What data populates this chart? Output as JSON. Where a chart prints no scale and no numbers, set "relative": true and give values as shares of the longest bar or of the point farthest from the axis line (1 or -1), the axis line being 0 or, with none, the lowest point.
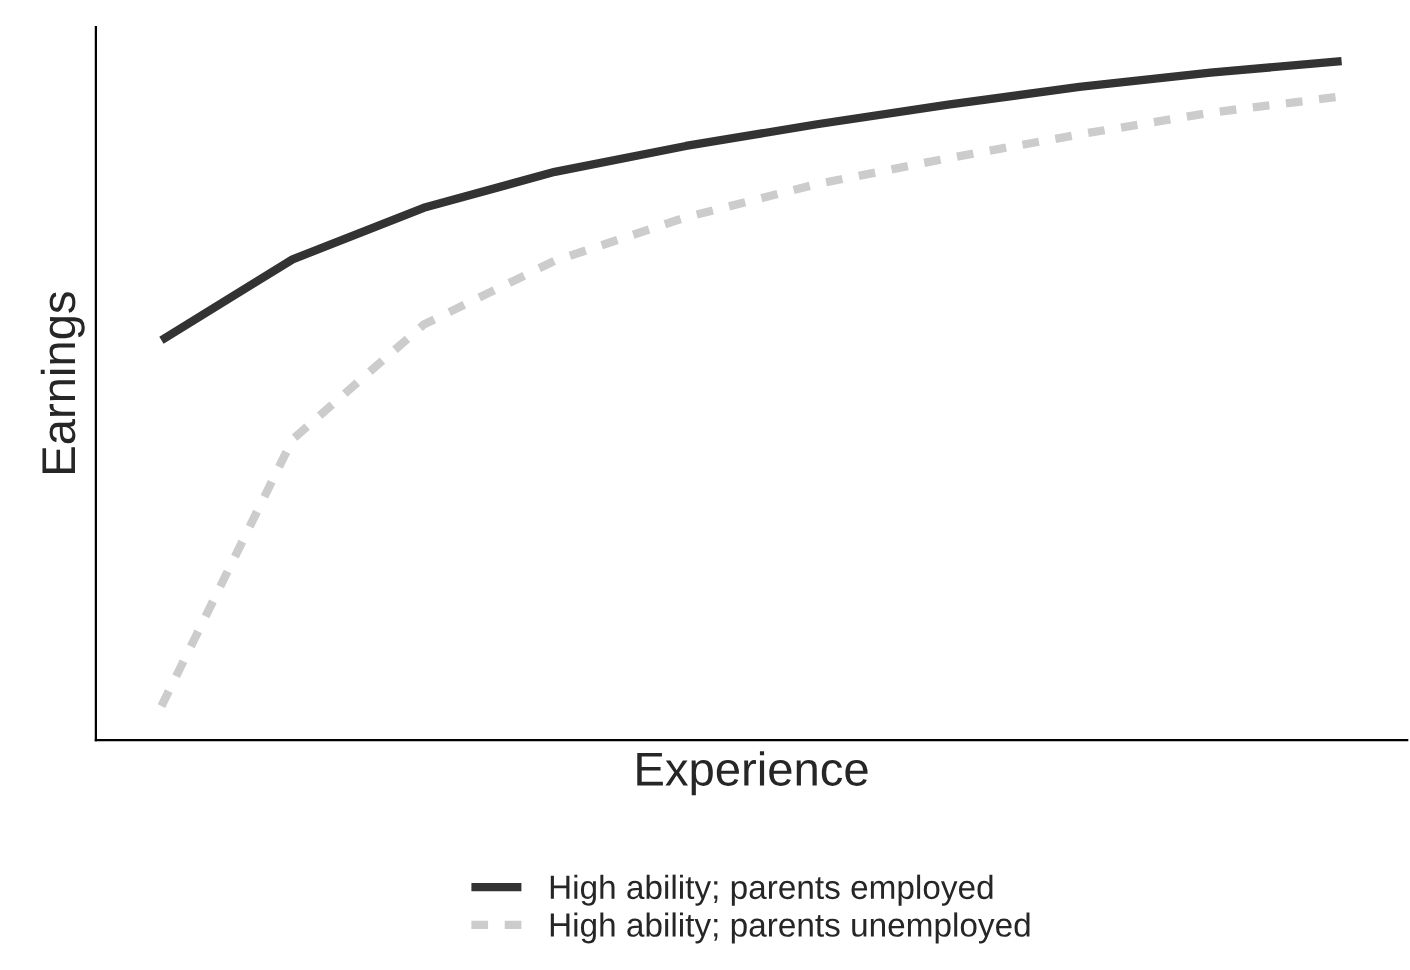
{
  "chart_data": {
    "type": "line",
    "relative": true,
    "xlabel": "Experience",
    "ylabel": "Earnings",
    "tick_labels": false,
    "legend": "bottom",
    "grid": false,
    "categories": [
      null,
      null,
      null,
      null,
      null,
      null,
      null,
      null,
      null,
      null
    ],
    "series": [
      {
        "name": "High ability; parents employed",
        "color": "#333333",
        "line_style": "solid",
        "values": [
          0.589,
          0.708,
          0.784,
          0.837,
          0.875,
          0.907,
          0.936,
          0.962,
          0.983,
          1
        ]
      },
      {
        "name": "High ability; parents unemployed",
        "color": "#cccccc",
        "line_style": "dashed",
        "values": [
          0.05,
          0.443,
          0.612,
          0.706,
          0.77,
          0.819,
          0.857,
          0.892,
          0.924,
          0.948
        ]
      }
    ]
  }
}
